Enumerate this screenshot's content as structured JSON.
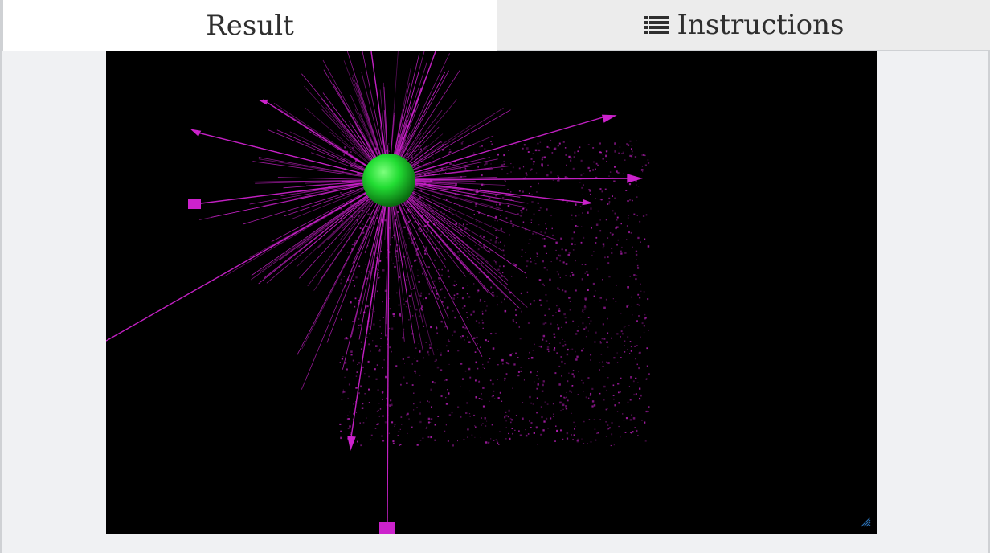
{
  "tabs": {
    "result_label": "Result",
    "instructions_label": "Instructions",
    "instructions_icon": "list-icon"
  },
  "scene": {
    "background_color": "#000000",
    "sphere_color": "#22dd33",
    "ray_color": "#cc22cc",
    "resize_handle_icon": "resize-grip-icon"
  }
}
